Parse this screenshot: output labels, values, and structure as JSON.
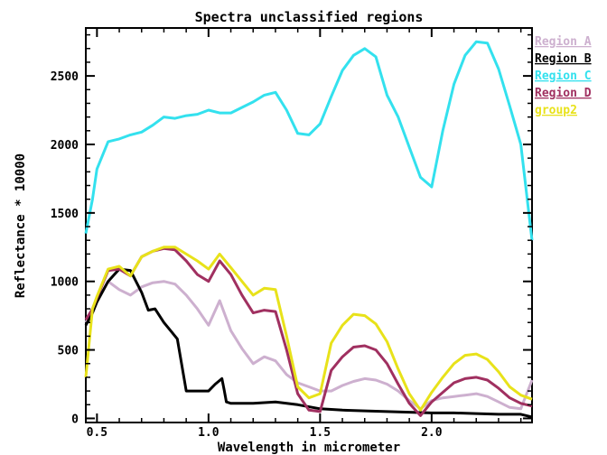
{
  "chart_data": {
    "type": "line",
    "title": "Spectra unclassified regions",
    "xlabel": "Wavelength in micrometer",
    "ylabel": "Reflectance * 10000",
    "xlim": [
      0.45,
      2.45
    ],
    "ylim": [
      -30,
      2850
    ],
    "xticks": [
      0.5,
      1.0,
      1.5,
      2.0
    ],
    "xtick_labels": [
      "0.5",
      "1.0",
      "1.5",
      "2.0"
    ],
    "yticks": [
      0,
      500,
      1000,
      1500,
      2000,
      2500
    ],
    "ytick_labels": [
      "0",
      "500",
      "1000",
      "1500",
      "2000",
      "2500"
    ],
    "grid": false,
    "legend_position": "right",
    "series": [
      {
        "name": "Region A",
        "color": "#cdb0cf",
        "x": [
          0.45,
          0.48,
          0.5,
          0.55,
          0.6,
          0.65,
          0.7,
          0.75,
          0.8,
          0.85,
          0.9,
          0.95,
          1.0,
          1.05,
          1.1,
          1.15,
          1.2,
          1.25,
          1.3,
          1.35,
          1.4,
          1.45,
          1.5,
          1.55,
          1.6,
          1.65,
          1.7,
          1.75,
          1.8,
          1.85,
          1.9,
          1.95,
          2.0,
          2.05,
          2.1,
          2.15,
          2.2,
          2.25,
          2.3,
          2.35,
          2.4,
          2.45
        ],
        "y": [
          700,
          790,
          860,
          1000,
          940,
          900,
          960,
          990,
          1000,
          980,
          900,
          800,
          680,
          860,
          640,
          510,
          400,
          450,
          420,
          320,
          260,
          230,
          200,
          200,
          240,
          270,
          290,
          280,
          250,
          200,
          130,
          70,
          130,
          150,
          160,
          170,
          180,
          160,
          120,
          80,
          70,
          280
        ]
      },
      {
        "name": "Region B",
        "color": "#000000",
        "x": [
          0.45,
          0.48,
          0.5,
          0.55,
          0.6,
          0.65,
          0.7,
          0.73,
          0.76,
          0.8,
          0.83,
          0.86,
          0.9,
          0.95,
          1.0,
          1.03,
          1.06,
          1.07,
          1.08,
          1.1,
          1.2,
          1.3,
          1.4,
          1.5,
          1.6,
          1.7,
          1.8,
          1.9,
          2.0,
          2.1,
          2.2,
          2.3,
          2.4,
          2.45
        ],
        "y": [
          680,
          770,
          850,
          1000,
          1090,
          1080,
          920,
          790,
          800,
          700,
          640,
          580,
          200,
          200,
          200,
          250,
          290,
          210,
          120,
          110,
          110,
          120,
          100,
          70,
          60,
          55,
          50,
          45,
          40,
          40,
          35,
          30,
          30,
          10
        ]
      },
      {
        "name": "Region C",
        "color": "#33e1ee",
        "x": [
          0.45,
          0.48,
          0.5,
          0.55,
          0.6,
          0.65,
          0.7,
          0.75,
          0.8,
          0.85,
          0.9,
          0.95,
          1.0,
          1.05,
          1.1,
          1.15,
          1.2,
          1.25,
          1.3,
          1.35,
          1.4,
          1.45,
          1.5,
          1.55,
          1.6,
          1.65,
          1.7,
          1.75,
          1.8,
          1.85,
          1.9,
          1.95,
          2.0,
          2.05,
          2.1,
          2.15,
          2.2,
          2.25,
          2.3,
          2.35,
          2.4,
          2.45
        ],
        "y": [
          1350,
          1600,
          1820,
          2020,
          2040,
          2070,
          2090,
          2140,
          2200,
          2190,
          2210,
          2220,
          2250,
          2230,
          2230,
          2270,
          2310,
          2360,
          2380,
          2250,
          2080,
          2070,
          2150,
          2350,
          2540,
          2650,
          2700,
          2640,
          2360,
          2200,
          1980,
          1760,
          1690,
          2100,
          2440,
          2650,
          2750,
          2740,
          2550,
          2280,
          2000,
          1300
        ]
      },
      {
        "name": "Region D",
        "color": "#a03060",
        "x": [
          0.45,
          0.48,
          0.5,
          0.55,
          0.6,
          0.65,
          0.7,
          0.75,
          0.8,
          0.85,
          0.9,
          0.95,
          1.0,
          1.05,
          1.1,
          1.15,
          1.2,
          1.25,
          1.3,
          1.35,
          1.4,
          1.45,
          1.5,
          1.55,
          1.6,
          1.65,
          1.7,
          1.75,
          1.8,
          1.85,
          1.9,
          1.95,
          2.0,
          2.05,
          2.1,
          2.15,
          2.2,
          2.25,
          2.3,
          2.35,
          2.4,
          2.45
        ],
        "y": [
          720,
          800,
          880,
          1080,
          1090,
          1040,
          1180,
          1220,
          1240,
          1230,
          1150,
          1050,
          1000,
          1150,
          1050,
          900,
          770,
          790,
          780,
          500,
          180,
          60,
          50,
          350,
          450,
          520,
          530,
          500,
          400,
          250,
          110,
          20,
          120,
          190,
          260,
          290,
          300,
          280,
          220,
          150,
          110,
          90
        ]
      },
      {
        "name": "group2",
        "color": "#e8e21a",
        "x": [
          0.45,
          0.48,
          0.5,
          0.55,
          0.6,
          0.65,
          0.7,
          0.75,
          0.8,
          0.85,
          0.9,
          0.95,
          1.0,
          1.05,
          1.1,
          1.15,
          1.2,
          1.25,
          1.3,
          1.35,
          1.4,
          1.45,
          1.5,
          1.55,
          1.6,
          1.65,
          1.7,
          1.75,
          1.8,
          1.85,
          1.9,
          1.95,
          2.0,
          2.05,
          2.1,
          2.15,
          2.2,
          2.25,
          2.3,
          2.35,
          2.4,
          2.45
        ],
        "y": [
          300,
          800,
          890,
          1090,
          1110,
          1040,
          1180,
          1220,
          1250,
          1250,
          1200,
          1150,
          1090,
          1200,
          1100,
          1000,
          900,
          950,
          940,
          600,
          230,
          150,
          180,
          550,
          680,
          760,
          750,
          690,
          560,
          360,
          180,
          60,
          190,
          300,
          400,
          460,
          470,
          430,
          340,
          230,
          170,
          140
        ]
      }
    ]
  }
}
